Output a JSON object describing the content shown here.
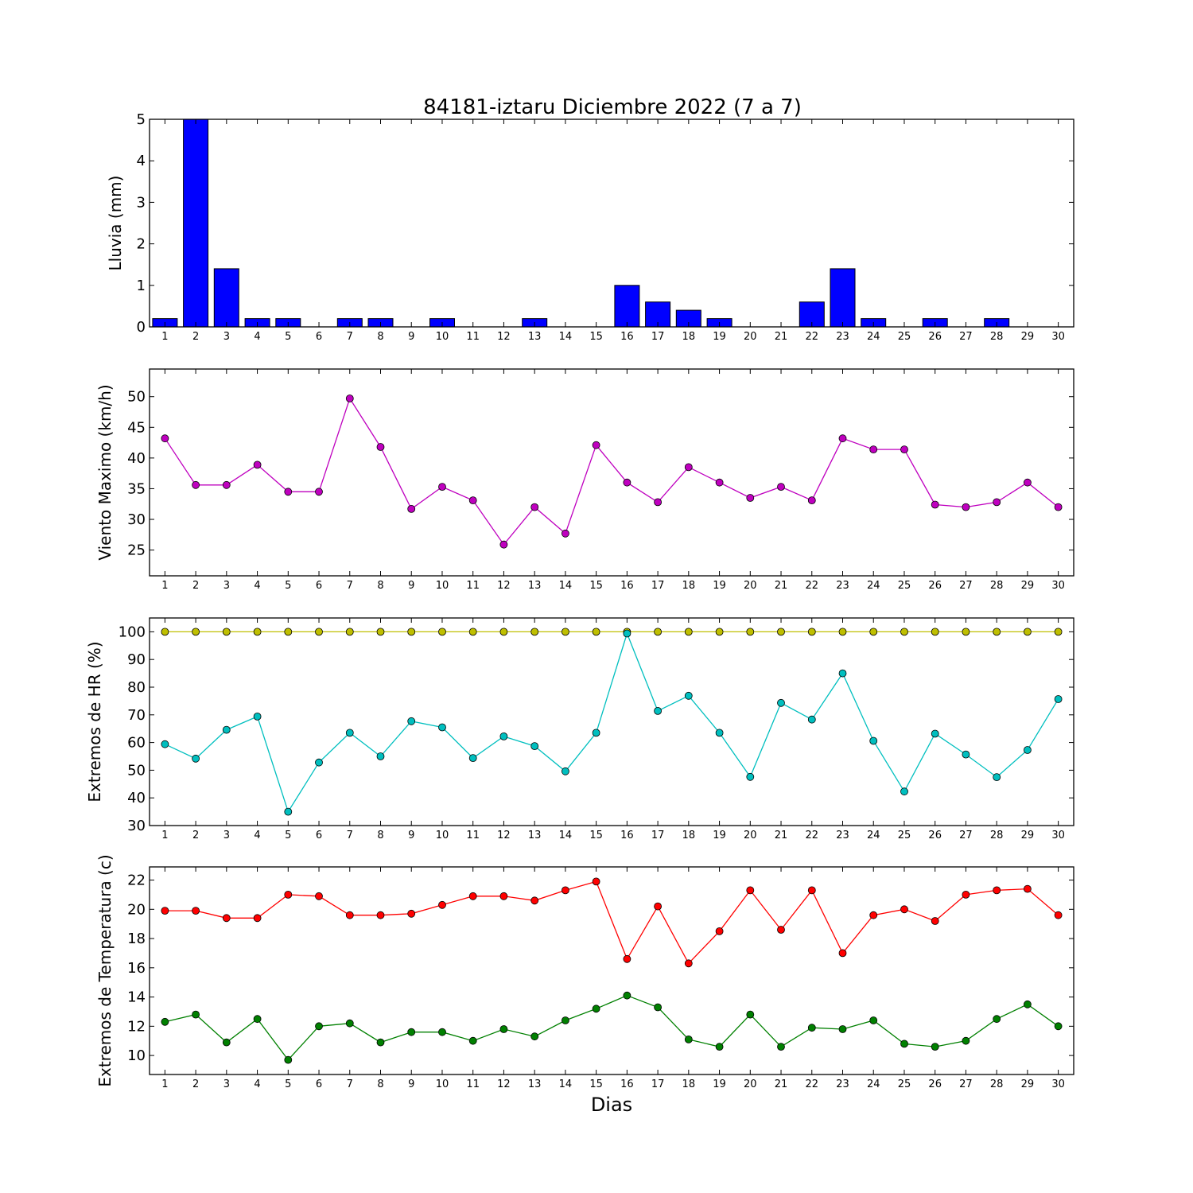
{
  "chart_data": [
    {
      "type": "bar",
      "title": "84181-iztaru Diciembre 2022  (7 a 7)",
      "ylabel": "Lluvia (mm)",
      "xlabel": "",
      "x": [
        1,
        2,
        3,
        4,
        5,
        6,
        7,
        8,
        9,
        10,
        11,
        12,
        13,
        14,
        15,
        16,
        17,
        18,
        19,
        20,
        21,
        22,
        23,
        24,
        25,
        26,
        27,
        28,
        29,
        30
      ],
      "xlim": [
        0.5,
        30.5
      ],
      "ylim": [
        0,
        5
      ],
      "yticks": [
        0,
        1,
        2,
        3,
        4,
        5
      ],
      "grid": false,
      "series": [
        {
          "color": "#0000ff",
          "values": [
            0.2,
            5,
            1.4,
            0.2,
            0.2,
            0,
            0.2,
            0.2,
            0,
            0.2,
            0,
            0,
            0.2,
            0,
            0,
            1,
            0.6,
            0.4,
            0.2,
            0,
            0,
            0.6,
            1.4,
            0.2,
            0,
            0.2,
            0,
            0.2,
            0,
            0
          ]
        }
      ]
    },
    {
      "type": "line",
      "title": "",
      "ylabel": "Viento Maximo (km/h)",
      "xlabel": "",
      "x": [
        1,
        2,
        3,
        4,
        5,
        6,
        7,
        8,
        9,
        10,
        11,
        12,
        13,
        14,
        15,
        16,
        17,
        18,
        19,
        20,
        21,
        22,
        23,
        24,
        25,
        26,
        27,
        28,
        29,
        30
      ],
      "xlim": [
        0.5,
        30.5
      ],
      "ylim": [
        20.8,
        54.5
      ],
      "yticks": [
        25,
        30,
        35,
        40,
        45,
        50
      ],
      "grid": false,
      "series": [
        {
          "color": "#bf00bf",
          "values": [
            43.2,
            35.6,
            35.6,
            38.9,
            34.5,
            34.5,
            49.7,
            41.8,
            31.7,
            35.3,
            33.1,
            25.9,
            32,
            27.7,
            42.1,
            36,
            32.8,
            38.5,
            36,
            33.5,
            35.3,
            33.1,
            43.2,
            41.4,
            41.4,
            32.4,
            32,
            32.8,
            36,
            32
          ]
        }
      ]
    },
    {
      "type": "line",
      "title": "",
      "ylabel": "Extremos de HR (%)",
      "xlabel": "",
      "x": [
        1,
        2,
        3,
        4,
        5,
        6,
        7,
        8,
        9,
        10,
        11,
        12,
        13,
        14,
        15,
        16,
        17,
        18,
        19,
        20,
        21,
        22,
        23,
        24,
        25,
        26,
        27,
        28,
        29,
        30
      ],
      "xlim": [
        0.5,
        30.5
      ],
      "ylim": [
        30,
        105
      ],
      "yticks": [
        30,
        40,
        50,
        60,
        70,
        80,
        90,
        100
      ],
      "grid": false,
      "series": [
        {
          "color": "#bfbf00",
          "values": [
            100,
            100,
            100,
            100,
            100,
            100,
            100,
            100,
            100,
            100,
            100,
            100,
            100,
            100,
            100,
            100,
            100,
            100,
            100,
            100,
            100,
            100,
            100,
            100,
            100,
            100,
            100,
            100,
            100,
            100
          ]
        },
        {
          "color": "#00bfbf",
          "values": [
            59.4,
            54.2,
            64.6,
            69.4,
            35,
            52.8,
            63.5,
            55,
            67.7,
            65.5,
            54.4,
            62.2,
            58.7,
            49.6,
            63.5,
            99.4,
            71.4,
            76.9,
            63.5,
            47.6,
            74.3,
            68.3,
            85,
            60.6,
            42.3,
            63.2,
            55.7,
            47.5,
            57.3,
            75.7
          ]
        }
      ]
    },
    {
      "type": "line",
      "title": "",
      "ylabel": "Extremos de Temperatura (c)",
      "xlabel": "Dias",
      "x": [
        1,
        2,
        3,
        4,
        5,
        6,
        7,
        8,
        9,
        10,
        11,
        12,
        13,
        14,
        15,
        16,
        17,
        18,
        19,
        20,
        21,
        22,
        23,
        24,
        25,
        26,
        27,
        28,
        29,
        30
      ],
      "xlim": [
        0.5,
        30.5
      ],
      "ylim": [
        8.7,
        22.9
      ],
      "yticks": [
        10,
        12,
        14,
        16,
        18,
        20,
        22
      ],
      "grid": false,
      "series": [
        {
          "color": "#ff0000",
          "values": [
            19.9,
            19.9,
            19.4,
            19.4,
            21,
            20.9,
            19.6,
            19.6,
            19.7,
            20.3,
            20.9,
            20.9,
            20.6,
            21.3,
            21.9,
            16.6,
            20.2,
            16.3,
            18.5,
            21.3,
            18.6,
            21.3,
            17,
            19.6,
            20,
            19.2,
            21,
            21.3,
            21.4,
            19.6
          ]
        },
        {
          "color": "#008000",
          "values": [
            12.3,
            12.8,
            10.9,
            12.5,
            9.7,
            12,
            12.2,
            10.9,
            11.6,
            11.6,
            11,
            11.8,
            11.3,
            12.4,
            13.2,
            14.1,
            13.3,
            11.1,
            10.6,
            12.8,
            10.6,
            11.9,
            11.8,
            12.4,
            10.8,
            10.6,
            11,
            12.5,
            13.5,
            12
          ]
        }
      ]
    }
  ]
}
